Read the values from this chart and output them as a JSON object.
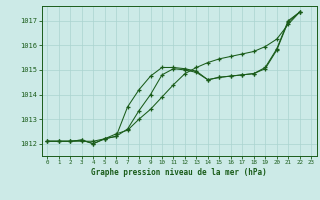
{
  "xlabel": "Graphe pression niveau de la mer (hPa)",
  "ylim": [
    1011.5,
    1017.6
  ],
  "xlim": [
    -0.5,
    23.5
  ],
  "yticks": [
    1012,
    1013,
    1014,
    1015,
    1016,
    1017
  ],
  "xticks": [
    0,
    1,
    2,
    3,
    4,
    5,
    6,
    7,
    8,
    9,
    10,
    11,
    12,
    13,
    14,
    15,
    16,
    17,
    18,
    19,
    20,
    21,
    22,
    23
  ],
  "bg_color": "#cceae7",
  "line_color": "#1a5c1a",
  "grid_color": "#aad4d0",
  "series": [
    [
      1012.1,
      1012.1,
      1012.1,
      1012.15,
      1012.0,
      1012.2,
      1012.3,
      1013.5,
      1014.2,
      1014.75,
      1015.1,
      1015.1,
      1015.05,
      1014.95,
      1014.6,
      1014.7,
      1014.75,
      1014.8,
      1014.85,
      1015.1,
      1015.85,
      1017.0,
      1017.35
    ],
    [
      1012.1,
      1012.1,
      1012.1,
      1012.1,
      1012.1,
      1012.2,
      1012.4,
      1012.55,
      1013.0,
      1013.4,
      1013.9,
      1014.4,
      1014.85,
      1015.1,
      1015.3,
      1015.45,
      1015.55,
      1015.65,
      1015.75,
      1015.95,
      1016.25,
      1016.85,
      1017.35
    ],
    [
      1012.1,
      1012.1,
      1012.1,
      1012.15,
      1012.0,
      1012.2,
      1012.3,
      1012.6,
      1013.35,
      1014.0,
      1014.8,
      1015.05,
      1015.0,
      1014.9,
      1014.6,
      1014.7,
      1014.75,
      1014.8,
      1014.85,
      1015.05,
      1015.8,
      1016.95,
      1017.35
    ]
  ]
}
